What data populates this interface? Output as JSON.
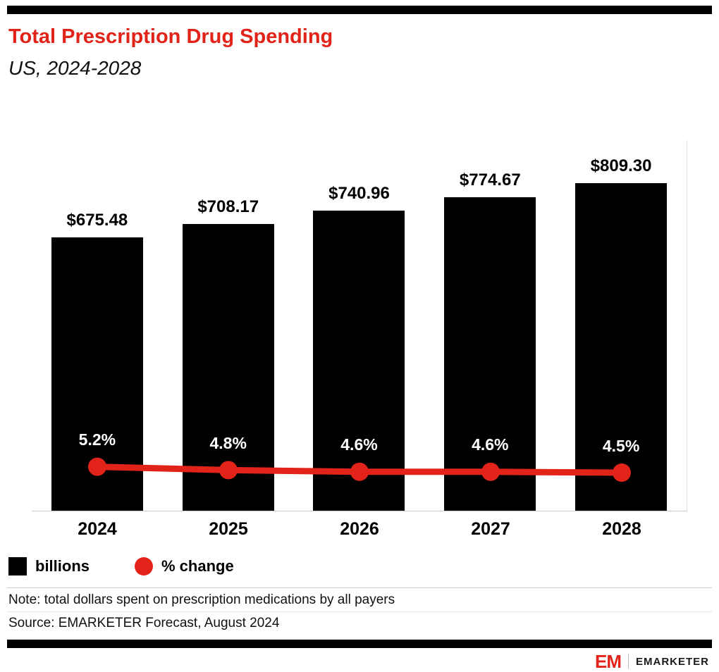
{
  "header": {
    "title": "Total Prescription Drug Spending",
    "subtitle": "US, 2024-2028"
  },
  "chart_data": {
    "type": "bar",
    "categories": [
      "2024",
      "2025",
      "2026",
      "2027",
      "2028"
    ],
    "series": [
      {
        "name": "billions",
        "type": "bar",
        "values": [
          675.48,
          708.17,
          740.96,
          774.67,
          809.3
        ],
        "labels": [
          "$675.48",
          "$708.17",
          "$740.96",
          "$774.67",
          "$809.30"
        ],
        "color": "#000000"
      },
      {
        "name": "% change",
        "type": "line",
        "values": [
          5.2,
          4.8,
          4.6,
          4.6,
          4.5
        ],
        "labels": [
          "5.2%",
          "4.8%",
          "4.6%",
          "4.6%",
          "4.5%"
        ],
        "color": "#e2231a"
      }
    ],
    "title": "Total Prescription Drug Spending",
    "subtitle": "US, 2024-2028",
    "xlabel": "",
    "ylabel": "",
    "ylim": [
      0,
      915
    ],
    "grid": false,
    "legend_position": "bottom-left",
    "legend": [
      {
        "label": "billions",
        "swatch": "square",
        "color": "#000000"
      },
      {
        "label": "% change",
        "swatch": "circle",
        "color": "#e2231a"
      }
    ]
  },
  "footnotes": {
    "note": "Note: total dollars spent on prescription medications by all payers",
    "source": "Source: EMARKETER Forecast, August 2024"
  },
  "branding": {
    "logo_mark": "EM",
    "logo_text": "EMARKETER"
  },
  "colors": {
    "accent": "#e2231a",
    "bar": "#000000"
  }
}
